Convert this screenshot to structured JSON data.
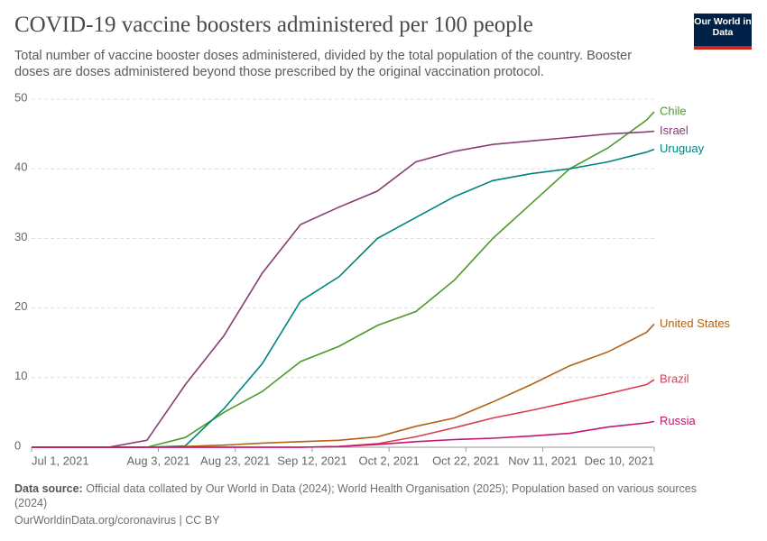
{
  "chart_data": {
    "type": "line",
    "title": "COVID-19 vaccine boosters administered per 100 people",
    "subtitle": "Total number of vaccine booster doses administered, divided by the total population of the country. Booster doses are doses administered beyond those prescribed by the original vaccination protocol.",
    "logo": "Our World in Data",
    "source_label": "Data source:",
    "source": "Official data collated by Our World in Data (2024); World Health Organisation (2025); Population based on various sources (2024)",
    "footer": "OurWorldinData.org/coronavirus | CC BY",
    "x": [
      "2021-07-01",
      "2021-07-21",
      "2021-07-31",
      "2021-08-10",
      "2021-08-20",
      "2021-08-30",
      "2021-09-09",
      "2021-09-19",
      "2021-09-29",
      "2021-10-09",
      "2021-10-19",
      "2021-10-29",
      "2021-11-08",
      "2021-11-18",
      "2021-11-28",
      "2021-12-08",
      "2021-12-10"
    ],
    "xlim": [
      "2021-07-01",
      "2021-12-10"
    ],
    "xticks": [
      {
        "value": "2021-07-01",
        "label": "Jul 1, 2021"
      },
      {
        "value": "2021-08-03",
        "label": "Aug 3, 2021"
      },
      {
        "value": "2021-08-23",
        "label": "Aug 23, 2021"
      },
      {
        "value": "2021-09-12",
        "label": "Sep 12, 2021"
      },
      {
        "value": "2021-10-02",
        "label": "Oct 2, 2021"
      },
      {
        "value": "2021-10-22",
        "label": "Oct 22, 2021"
      },
      {
        "value": "2021-11-11",
        "label": "Nov 11, 2021"
      },
      {
        "value": "2021-12-10",
        "label": "Dec 10, 2021"
      }
    ],
    "ylim": [
      0,
      50
    ],
    "yticks": [
      0,
      10,
      20,
      30,
      40,
      50
    ],
    "grid": true,
    "series": [
      {
        "name": "Chile",
        "color": "#4c9a2a",
        "values": [
          0,
          0,
          0,
          1.4,
          5,
          8,
          12.3,
          14.5,
          17.5,
          19.5,
          24,
          30,
          35,
          40,
          43,
          47,
          48.2
        ]
      },
      {
        "name": "Israel",
        "color": "#883d72",
        "values": [
          0,
          0,
          1,
          9,
          16,
          25,
          32,
          34.5,
          36.8,
          41,
          42.5,
          43.5,
          44,
          44.5,
          45,
          45.3,
          45.4
        ]
      },
      {
        "name": "Uruguay",
        "color": "#00847e",
        "values": [
          0,
          0,
          0,
          0.2,
          5.5,
          12,
          21,
          24.5,
          30,
          33,
          36,
          38.3,
          39.3,
          40,
          41,
          42.4,
          42.8
        ]
      },
      {
        "name": "United States",
        "color": "#b16214",
        "values": [
          0,
          0,
          0,
          0.1,
          0.3,
          0.6,
          0.8,
          1,
          1.5,
          3,
          4.2,
          6.5,
          9,
          11.7,
          13.7,
          16.5,
          17.7
        ]
      },
      {
        "name": "Brazil",
        "color": "#d73c50",
        "values": [
          0,
          0,
          0,
          0,
          0,
          0,
          0,
          0.1,
          0.5,
          1.5,
          2.8,
          4.2,
          5.3,
          6.5,
          7.7,
          9,
          9.7
        ]
      },
      {
        "name": "Russia",
        "color": "#c4166f",
        "values": [
          0,
          0,
          0,
          0,
          0,
          0,
          0,
          0.1,
          0.4,
          0.8,
          1.1,
          1.3,
          1.6,
          2,
          2.9,
          3.5,
          3.7
        ]
      }
    ]
  }
}
